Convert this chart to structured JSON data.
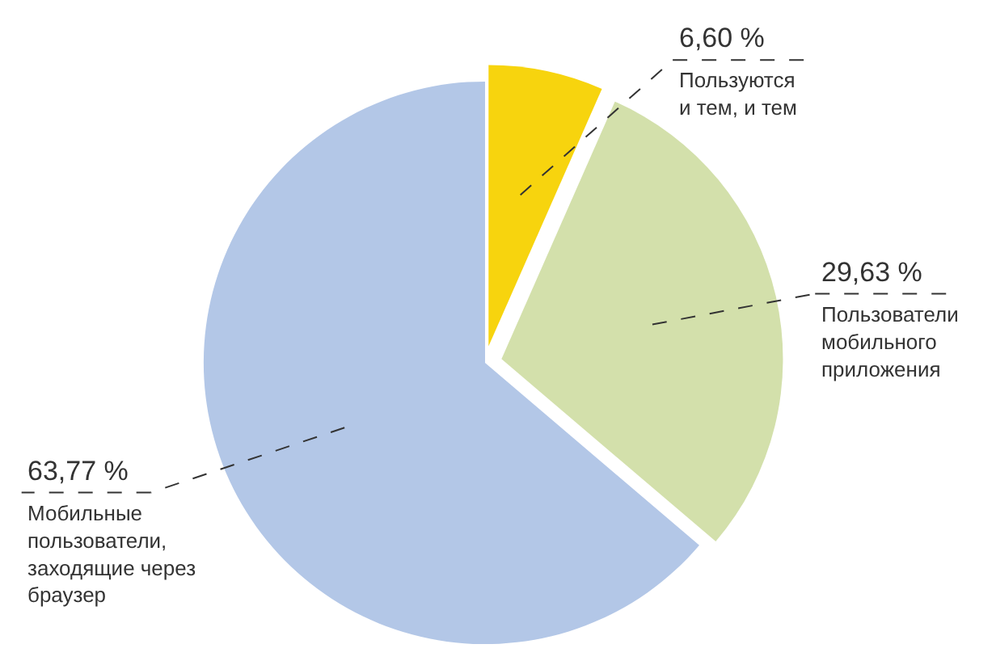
{
  "chart_data": {
    "type": "pie",
    "categories": [
      "Пользуются\nи тем, и тем",
      "Пользователи\nмобильного\nприложения",
      "Мобильные\nпользователи,\nзаходящие через\nбраузер"
    ],
    "values": [
      6.6,
      29.63,
      63.77
    ],
    "colors": [
      "#f7d40e",
      "#d3e0ab",
      "#b3c7e7"
    ],
    "value_labels": [
      "6,60 %",
      "29,63 %",
      "63,77 %"
    ]
  }
}
